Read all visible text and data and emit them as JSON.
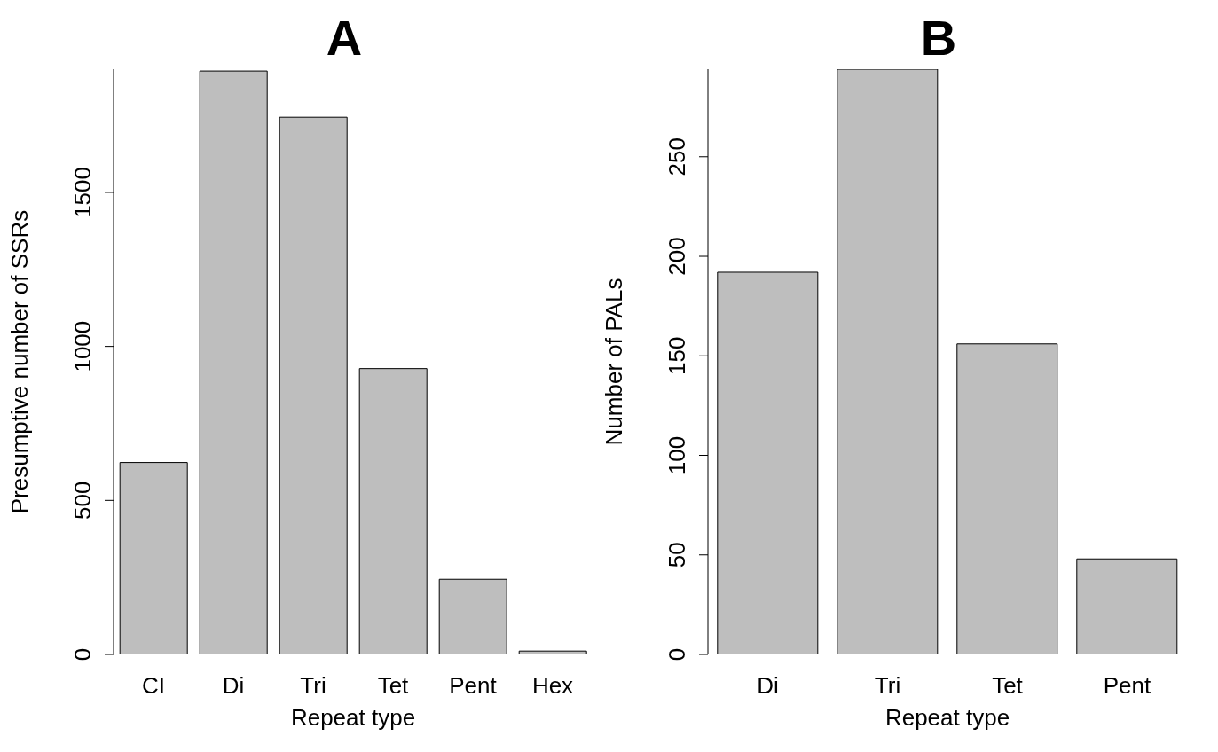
{
  "chart_data": [
    {
      "type": "bar",
      "title": "A",
      "xlabel": "Repeat type",
      "ylabel": "Presumptive number of SSRs",
      "categories": [
        "CI",
        "Di",
        "Tri",
        "Tet",
        "Pent",
        "Hex"
      ],
      "values": [
        623,
        1894,
        1744,
        928,
        244,
        11
      ],
      "color": "#bebebe",
      "ylim": [
        0,
        1900
      ],
      "yticks": [
        0,
        500,
        1000,
        1500
      ],
      "grid": false,
      "legend": false
    },
    {
      "type": "bar",
      "title": "B",
      "xlabel": "Repeat type",
      "ylabel": "Number of PALs",
      "categories": [
        "Di",
        "Tri",
        "Tet",
        "Pent"
      ],
      "values": [
        192,
        294,
        156,
        48
      ],
      "color": "#bebebe",
      "ylim": [
        0,
        294
      ],
      "yticks": [
        0,
        50,
        100,
        150,
        200,
        250
      ],
      "grid": false,
      "legend": false
    }
  ]
}
